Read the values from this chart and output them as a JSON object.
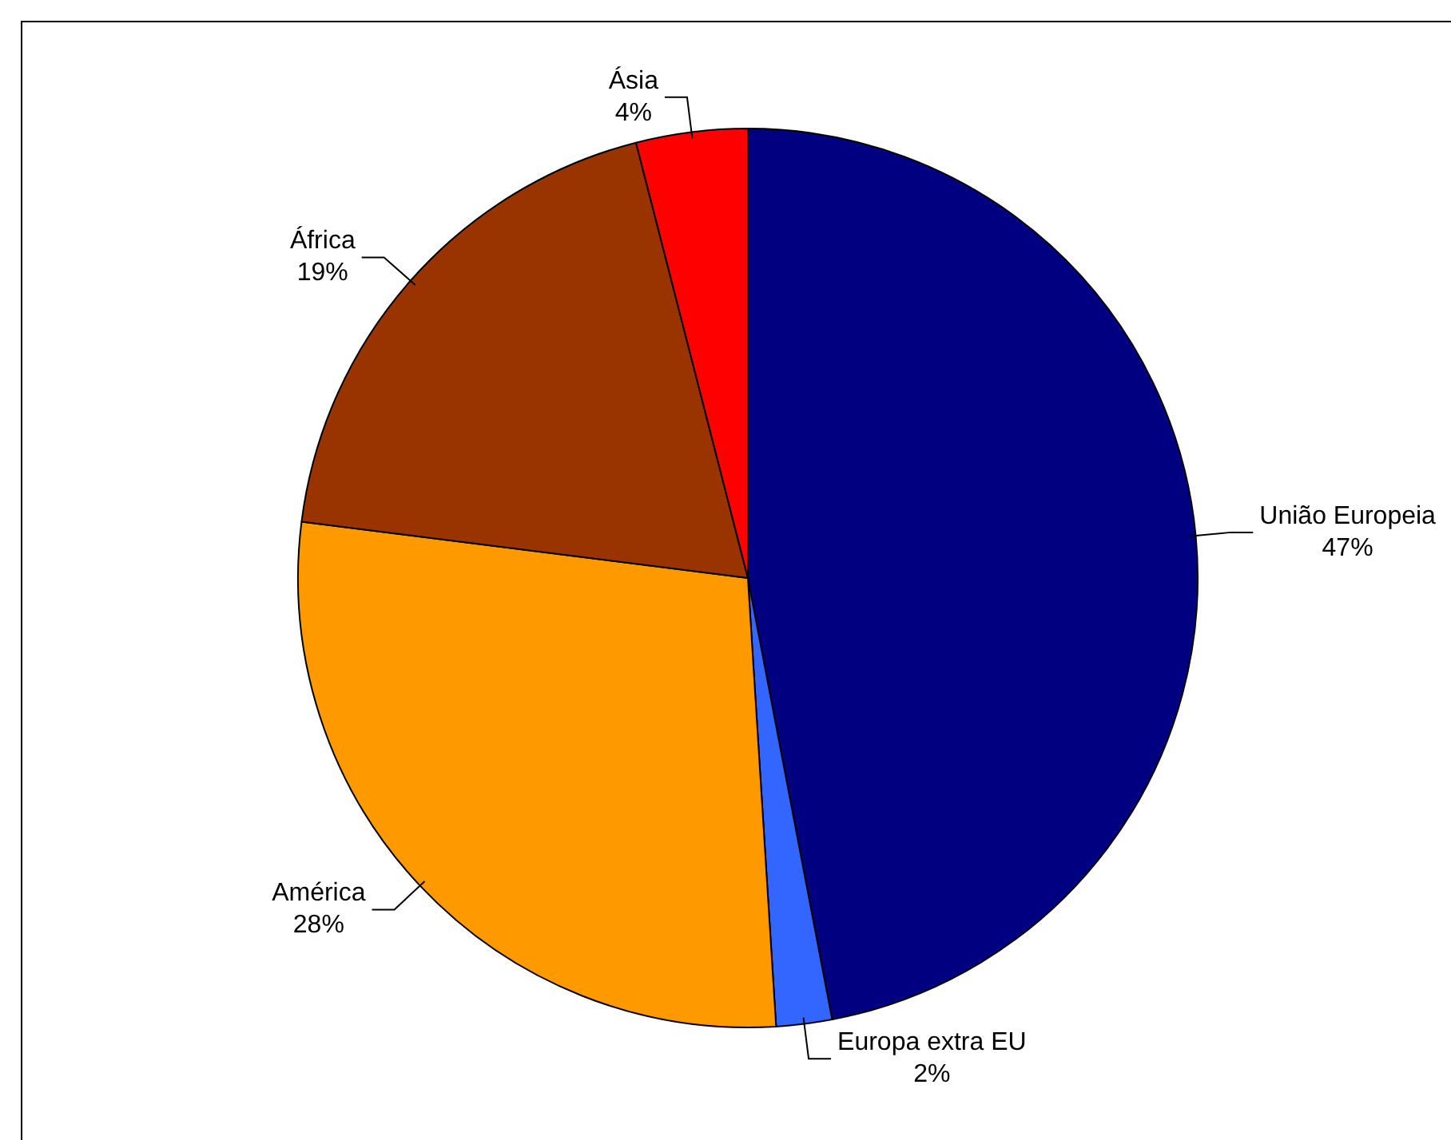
{
  "chart_data": {
    "type": "pie",
    "categories": [
      "União Europeia",
      "Europa extra EU",
      "América",
      "África",
      "Ásia"
    ],
    "values": [
      47,
      2,
      28,
      19,
      4
    ],
    "colors": [
      "#000080",
      "#3366ff",
      "#ff9900",
      "#993300",
      "#ff0000"
    ],
    "value_labels": [
      "47%",
      "2%",
      "28%",
      "19%",
      "4%"
    ],
    "legend": false
  }
}
